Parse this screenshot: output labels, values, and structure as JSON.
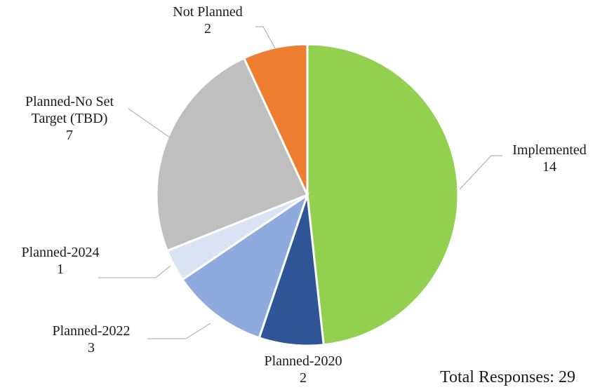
{
  "chart_data": {
    "type": "pie",
    "categories": [
      "Implemented",
      "Planned-2020",
      "Planned-2022",
      "Planned-2024",
      "Planned-No Set Target (TBD)",
      "Not Planned"
    ],
    "values": [
      14,
      2,
      3,
      1,
      7,
      2
    ],
    "colors": [
      "#92d050",
      "#2f5597",
      "#8faadc",
      "#dae3f3",
      "#bfbfbf",
      "#ed7d31"
    ],
    "labels": [
      {
        "lines": [
          "Implemented",
          "14"
        ]
      },
      {
        "lines": [
          "Planned-2020",
          "2"
        ]
      },
      {
        "lines": [
          "Planned-2022",
          "3"
        ]
      },
      {
        "lines": [
          "Planned-2024",
          "1"
        ]
      },
      {
        "lines": [
          "Planned-No Set",
          "Target (TBD)",
          "7"
        ]
      },
      {
        "lines": [
          "Not Planned",
          "2"
        ]
      }
    ],
    "annotation": "Total Responses: 29",
    "legend": "none",
    "start": "top, clockwise"
  }
}
